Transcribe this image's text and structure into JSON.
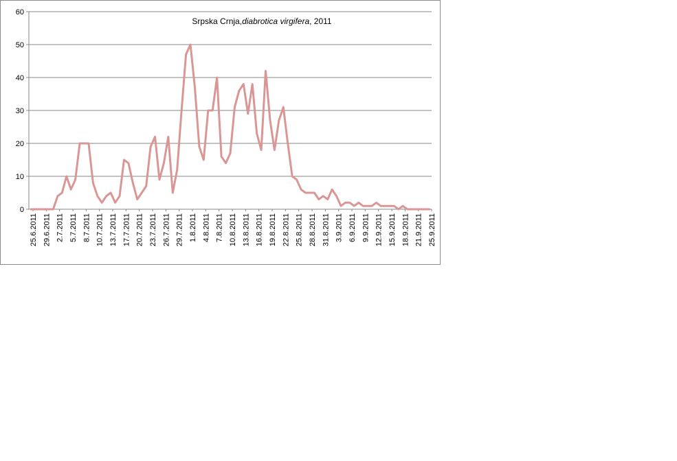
{
  "chart_data": {
    "type": "line",
    "title": {
      "plain": "Srpska Crnja,",
      "italic": "diabrotica virgifera",
      "suffix": ", 2011"
    },
    "xlabel": "",
    "ylabel": "",
    "ylim": [
      0,
      60
    ],
    "y_ticks": [
      "0",
      "10",
      "20",
      "30",
      "40",
      "50",
      "60"
    ],
    "grid": true,
    "legend": "none",
    "line_color": "#d99694",
    "x_tick_labels": [
      "25.6.2011",
      "29.6.2011",
      "2.7.2011",
      "5.7.2011",
      "8.7.2011",
      "10.7.2011",
      "13.7.2011",
      "17.7.2011",
      "20.7.2011",
      "23.7.2011",
      "26.7.2011",
      "29.7.2011",
      "1.8.2011",
      "4.8.2011",
      "7.8.2011",
      "10.8.2011",
      "13.8.2011",
      "16.8.2011",
      "19.8.2011",
      "22.8.2011",
      "25.8.2011",
      "28.8.2011",
      "31.8.2011",
      "3.9.2011",
      "6.9.2011",
      "9.9.2011",
      "12.9.2011",
      "15.9.2011",
      "18.9.2011",
      "21.9.2011",
      "25.9.2011"
    ],
    "series": [
      {
        "values": [
          0,
          0,
          0,
          0,
          0,
          0,
          4,
          5,
          10,
          6,
          9,
          20,
          20,
          20,
          8,
          4,
          2,
          4,
          5,
          2,
          4,
          15,
          14,
          8,
          3,
          5,
          7,
          19,
          22,
          9,
          14,
          22,
          5,
          12,
          30,
          47,
          50,
          37,
          19,
          15,
          30,
          30,
          40,
          16,
          14,
          17,
          31,
          36,
          38,
          29,
          38,
          23,
          18,
          42,
          27,
          18,
          27,
          31,
          20,
          10,
          9,
          6,
          5,
          5,
          5,
          3,
          4,
          3,
          6,
          4,
          1,
          2,
          2,
          1,
          2,
          1,
          1,
          1,
          2,
          1,
          1,
          1,
          1,
          0,
          1,
          0,
          0,
          0,
          0,
          0,
          0
        ]
      }
    ]
  }
}
